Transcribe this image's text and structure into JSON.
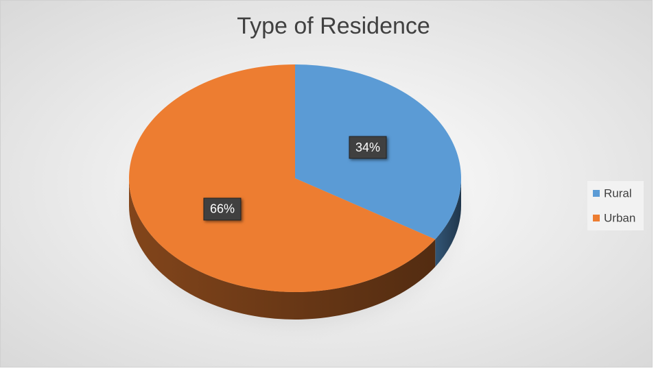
{
  "chart_data": {
    "type": "pie",
    "title": "Type of Residence",
    "categories": [
      "Rural",
      "Urban"
    ],
    "values": [
      34,
      66
    ],
    "value_labels": [
      "34%",
      "66%"
    ],
    "colors": [
      "#5b9bd5",
      "#ed7d31"
    ],
    "legend": "right"
  }
}
